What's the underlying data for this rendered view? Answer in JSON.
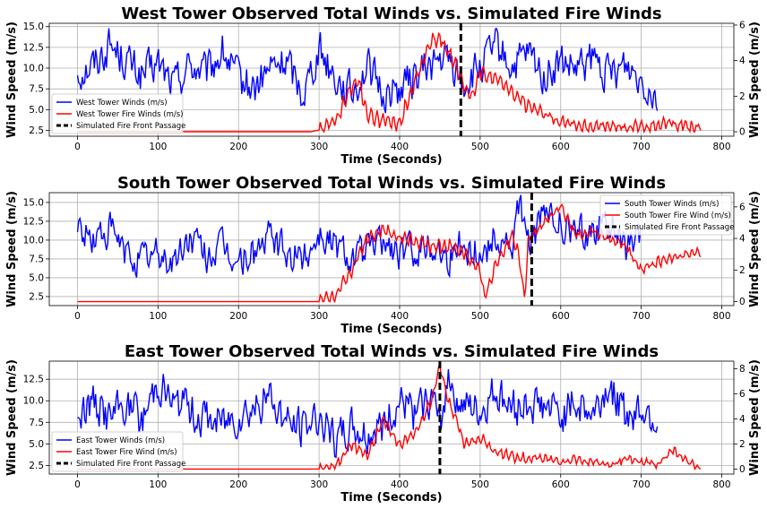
{
  "chart_data": [
    {
      "type": "line",
      "title": "West Tower Observed Total Winds vs. Simulated Fire Winds",
      "xlabel": "Time (Seconds)",
      "ylabel": "Wind Speed (m/s)",
      "ylabel_right": "Wind Speed (m/s)",
      "xlim": [
        -35,
        815
      ],
      "ylim": [
        1.8,
        15.4
      ],
      "ylim_right": [
        -0.25,
        6.1
      ],
      "xticks": [
        0,
        100,
        200,
        300,
        400,
        500,
        600,
        700,
        800
      ],
      "yticks": [
        2.5,
        5.0,
        7.5,
        10.0,
        12.5,
        15.0
      ],
      "yticks_right": [
        0,
        2,
        4,
        6
      ],
      "grid": true,
      "legend_position": "lower-left",
      "legend": [
        "West Tower Winds (m/s)",
        "West Tower Fire Winds (m/s)",
        "Simulated Fire Front Passage"
      ],
      "fire_front_passage_x": 476,
      "series": [
        {
          "name": "West Tower Winds (m/s)",
          "axis": "left",
          "color": "#0000ff",
          "x": [
            0,
            20,
            40,
            60,
            80,
            100,
            120,
            140,
            160,
            180,
            200,
            220,
            240,
            260,
            280,
            300,
            320,
            340,
            360,
            380,
            400,
            420,
            440,
            460,
            480,
            500,
            520,
            540,
            560,
            580,
            600,
            620,
            640,
            660,
            680,
            700,
            720
          ],
          "values": [
            9.5,
            10.5,
            12.8,
            11.0,
            9.0,
            10.5,
            8.0,
            10.5,
            9.2,
            12.0,
            8.5,
            7.5,
            10.0,
            10.8,
            7.0,
            12.5,
            9.0,
            7.0,
            10.2,
            6.8,
            7.5,
            9.0,
            10.5,
            11.0,
            8.0,
            10.0,
            12.5,
            10.0,
            11.5,
            9.0,
            10.5,
            9.5,
            11.0,
            9.0,
            10.5,
            9.0,
            6.8
          ]
        },
        {
          "name": "West Tower Fire Winds (m/s)",
          "axis": "right",
          "color": "#ff0000",
          "x": [
            0,
            100,
            200,
            290,
            300,
            320,
            340,
            350,
            360,
            380,
            400,
            420,
            440,
            450,
            460,
            470,
            480,
            490,
            500,
            520,
            540,
            560,
            580,
            600,
            620,
            640,
            660,
            680,
            700,
            720,
            740,
            760,
            775
          ],
          "values": [
            0,
            0,
            0,
            0,
            0.1,
            0.6,
            2.5,
            2.8,
            1.0,
            0.6,
            0.4,
            3.0,
            5.1,
            5.3,
            4.5,
            3.8,
            2.5,
            2.0,
            3.4,
            3.0,
            2.2,
            1.4,
            1.0,
            0.6,
            0.4,
            0.3,
            0.3,
            0.2,
            0.3,
            0.4,
            0.5,
            0.3,
            0.2
          ]
        }
      ]
    },
    {
      "type": "line",
      "title": "South Tower Observed Total Winds vs. Simulated Fire Winds",
      "xlabel": "Time (Seconds)",
      "ylabel": "Wind Speed (m/s)",
      "ylabel_right": "Wind Speed (m/s)",
      "xlim": [
        -35,
        815
      ],
      "ylim": [
        1.3,
        16.3
      ],
      "ylim_right": [
        -0.25,
        6.9
      ],
      "xticks": [
        0,
        100,
        200,
        300,
        400,
        500,
        600,
        700,
        800
      ],
      "yticks": [
        2.5,
        5.0,
        7.5,
        10.0,
        12.5,
        15.0
      ],
      "yticks_right": [
        0,
        2,
        4,
        6
      ],
      "grid": true,
      "legend_position": "upper-right",
      "legend": [
        "South Tower Winds (m/s)",
        "South Tower Fire Wind (m/s)",
        "Simulated Fire Front Passage"
      ],
      "fire_front_passage_x": 564,
      "series": [
        {
          "name": "South Tower Winds (m/s)",
          "axis": "left",
          "color": "#0000ff",
          "x": [
            0,
            20,
            40,
            60,
            80,
            100,
            120,
            140,
            160,
            180,
            200,
            220,
            240,
            260,
            280,
            300,
            320,
            340,
            360,
            380,
            400,
            420,
            440,
            460,
            480,
            500,
            520,
            540,
            550,
            560,
            580,
            600,
            620,
            640,
            660,
            680,
            700
          ],
          "values": [
            11.5,
            10.0,
            11.5,
            8.0,
            7.5,
            8.0,
            7.0,
            10.5,
            8.0,
            9.0,
            7.0,
            8.5,
            10.5,
            8.0,
            7.5,
            11.0,
            9.5,
            8.0,
            8.5,
            10.0,
            8.0,
            9.0,
            9.5,
            8.0,
            9.5,
            8.0,
            10.5,
            9.0,
            15.0,
            9.5,
            13.5,
            12.0,
            11.0,
            11.5,
            12.5,
            9.0,
            9.5
          ]
        },
        {
          "name": "South Tower Fire Wind (m/s)",
          "axis": "right",
          "color": "#ff0000",
          "x": [
            0,
            100,
            200,
            300,
            320,
            340,
            360,
            380,
            400,
            420,
            440,
            460,
            480,
            500,
            505,
            520,
            540,
            550,
            555,
            560,
            580,
            600,
            605,
            620,
            640,
            660,
            680,
            700,
            720,
            740,
            760,
            775
          ],
          "values": [
            0,
            0,
            0,
            0,
            0.3,
            2.0,
            4.0,
            4.5,
            4.0,
            3.8,
            3.5,
            3.5,
            3.2,
            2.0,
            0.2,
            2.5,
            4.2,
            2.5,
            0.1,
            4.0,
            5.0,
            6.0,
            5.5,
            4.2,
            4.5,
            4.0,
            3.5,
            2.0,
            2.5,
            2.8,
            3.0,
            3.2
          ]
        }
      ]
    },
    {
      "type": "line",
      "title": "East Tower Observed Total Winds vs. Simulated Fire Winds",
      "xlabel": "Time (Seconds)",
      "ylabel": "Wind Speed (m/s)",
      "ylabel_right": "Wind Speed (m/s)",
      "xlim": [
        -35,
        815
      ],
      "ylim": [
        1.5,
        14.6
      ],
      "ylim_right": [
        -0.4,
        8.6
      ],
      "xticks": [
        0,
        100,
        200,
        300,
        400,
        500,
        600,
        700,
        800
      ],
      "yticks": [
        2.5,
        5.0,
        7.5,
        10.0,
        12.5
      ],
      "yticks_right": [
        0,
        2,
        4,
        6,
        8
      ],
      "grid": true,
      "legend_position": "lower-left",
      "legend": [
        "East Tower Winds (m/s)",
        "East Tower Fire Wind (m/s)",
        "Simulated Fire Front Passage"
      ],
      "fire_front_passage_x": 450,
      "series": [
        {
          "name": "East Tower Winds (m/s)",
          "axis": "left",
          "color": "#0000ff",
          "x": [
            0,
            20,
            40,
            60,
            80,
            100,
            120,
            140,
            160,
            180,
            200,
            220,
            240,
            260,
            280,
            300,
            320,
            340,
            360,
            380,
            400,
            420,
            440,
            450,
            460,
            480,
            500,
            520,
            540,
            560,
            580,
            600,
            620,
            640,
            660,
            680,
            700,
            720
          ],
          "values": [
            8.5,
            10.0,
            8.0,
            9.5,
            7.5,
            12.5,
            9.5,
            9.0,
            8.0,
            7.5,
            8.5,
            9.5,
            10.5,
            7.5,
            7.0,
            8.5,
            5.0,
            7.0,
            6.0,
            7.5,
            9.5,
            8.0,
            10.5,
            6.5,
            13.0,
            9.0,
            8.5,
            11.0,
            9.0,
            10.0,
            9.5,
            8.5,
            10.0,
            8.5,
            12.0,
            8.0,
            9.5,
            8.0
          ]
        },
        {
          "name": "East Tower Fire Wind (m/s)",
          "axis": "right",
          "color": "#ff0000",
          "x": [
            0,
            100,
            200,
            300,
            320,
            340,
            360,
            380,
            400,
            420,
            440,
            450,
            460,
            470,
            480,
            500,
            520,
            540,
            560,
            580,
            600,
            620,
            640,
            660,
            680,
            700,
            720,
            740,
            760,
            775
          ],
          "values": [
            0,
            0,
            0,
            0,
            0.2,
            2.0,
            1.0,
            4.0,
            1.8,
            3.0,
            5.5,
            8.3,
            5.5,
            4.0,
            2.0,
            2.5,
            1.3,
            1.0,
            0.8,
            0.9,
            0.5,
            0.8,
            0.5,
            0.3,
            0.8,
            0.6,
            0.3,
            1.5,
            0.5,
            0.1
          ]
        }
      ]
    }
  ]
}
